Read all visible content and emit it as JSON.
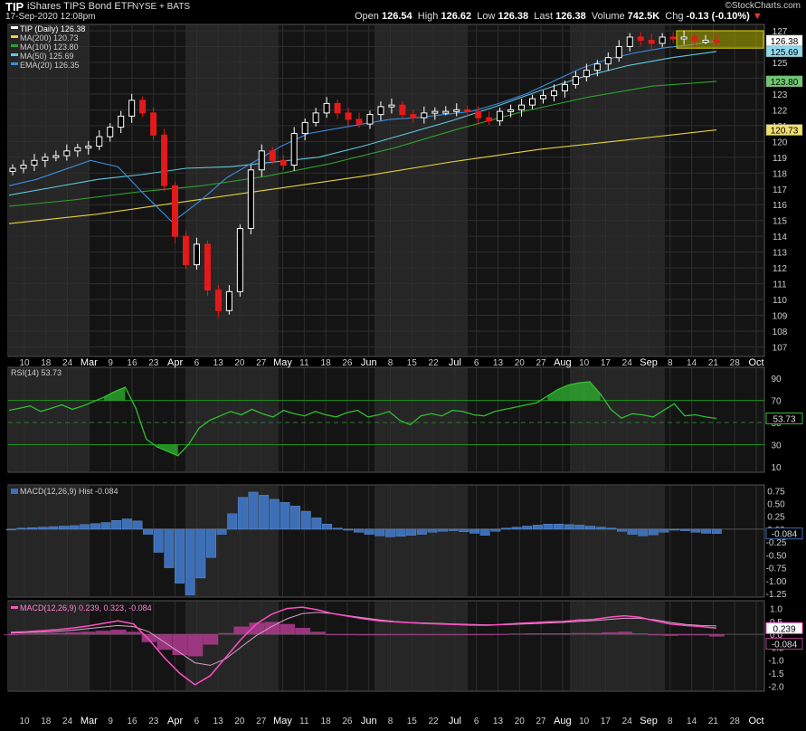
{
  "header": {
    "symbol": "TIP",
    "name": "iShares TIPS Bond ETF",
    "exchange": "NYSE + BATS",
    "datetime": "17-Sep-2020 12:08pm",
    "open_label": "Open",
    "open": "126.54",
    "high_label": "High",
    "high": "126.62",
    "low_label": "Low",
    "low": "126.38",
    "last_label": "Last",
    "last": "126.38",
    "volume_label": "Volume",
    "volume": "742.5K",
    "chg_label": "Chg",
    "chg": "-0.13 (-0.10%)",
    "chg_icon": "down-triangle-icon",
    "brand": "©StockCharts.com"
  },
  "colors": {
    "up": "#ffffff",
    "down": "#e31a1a",
    "ma200": "#e6d23a",
    "ma100": "#2ea02e",
    "ma50": "#5fc8e0",
    "ema20": "#3a8de0",
    "rsi": "#2fbf2f",
    "macd_hist": "#3d6fb8",
    "macd_line": "#ff4fc2",
    "signal": "#d7a0c8",
    "highlight": "#b3b000"
  },
  "chart_data": [
    {
      "type": "line",
      "title": "TIP (Daily) 126.38",
      "legend": [
        "TIP (Daily) 126.38",
        "MA(200) 120.73",
        "MA(100) 123.80",
        "MA(50) 125.69",
        "EMA(20) 126.35"
      ],
      "legend_placement": "top-left",
      "x_tick_labels": [
        "10",
        "18",
        "24",
        "Mar",
        "9",
        "16",
        "23",
        "Apr",
        "6",
        "13",
        "20",
        "27",
        "May",
        "11",
        "18",
        "26",
        "Jun",
        "8",
        "15",
        "22",
        "Jul",
        "6",
        "13",
        "20",
        "27",
        "Aug",
        "10",
        "17",
        "24",
        "Sep",
        "8",
        "14",
        "21",
        "28",
        "Oct"
      ],
      "y_ticks": [
        107,
        108,
        109,
        110,
        111,
        112,
        113,
        114,
        115,
        116,
        117,
        118,
        119,
        120,
        121,
        122,
        123,
        124,
        125,
        126,
        127
      ],
      "ylim": [
        106.4,
        127.4
      ],
      "right_labels": [
        "126.38",
        "125.69",
        "123.80",
        "120.73"
      ],
      "series": [
        {
          "name": "TIP (Daily)",
          "values": [
            118.3,
            118.5,
            118.8,
            119.0,
            119.1,
            119.4,
            119.6,
            119.7,
            120.3,
            120.9,
            121.6,
            122.6,
            121.8,
            120.4,
            117.2,
            114.0,
            112.2,
            113.5,
            110.6,
            109.3,
            110.5,
            114.5,
            118.2,
            119.4,
            118.8,
            118.5,
            120.5,
            121.2,
            121.8,
            122.4,
            121.8,
            121.4,
            121.1,
            121.7,
            122.2,
            122.3,
            121.7,
            121.5,
            121.8,
            121.9,
            121.9,
            122.0,
            121.9,
            121.5,
            121.3,
            121.9,
            122.0,
            122.3,
            122.7,
            122.9,
            123.2,
            123.6,
            124.1,
            124.5,
            124.9,
            125.3,
            126.0,
            126.6,
            126.4,
            126.2,
            126.6,
            126.5,
            126.6,
            126.4,
            126.4,
            126.38
          ]
        },
        {
          "name": "MA(200)",
          "values": [
            114.8,
            115.4,
            116.2,
            117.0,
            117.8,
            118.7,
            119.5,
            120.1,
            120.73
          ]
        },
        {
          "name": "MA(100)",
          "values": [
            115.9,
            116.3,
            116.8,
            117.2,
            117.8,
            118.6,
            119.6,
            120.8,
            121.9,
            122.8,
            123.5,
            123.8
          ]
        },
        {
          "name": "MA(50)",
          "values": [
            116.6,
            117.1,
            117.6,
            117.9,
            118.3,
            118.4,
            118.7,
            119.0,
            119.7,
            120.5,
            121.3,
            122.2,
            123.2,
            124.1,
            124.8,
            125.3,
            125.69
          ]
        },
        {
          "name": "EMA(20)",
          "values": [
            117.2,
            117.6,
            118.2,
            118.8,
            118.4,
            116.6,
            114.9,
            116.2,
            117.7,
            118.7,
            119.7,
            120.5,
            120.8,
            121.1,
            121.4,
            121.5,
            121.7,
            121.9,
            122.4,
            123.0,
            123.8,
            124.6,
            125.2,
            125.6,
            125.9,
            126.1,
            126.35
          ]
        }
      ]
    },
    {
      "type": "line",
      "title": "RSI(14) 53.73",
      "y_ticks": [
        10,
        30,
        50,
        70,
        90
      ],
      "ylim": [
        5,
        100
      ],
      "reference_lines": [
        30,
        50,
        70
      ],
      "right_labels": [
        "53.73"
      ],
      "series": [
        {
          "name": "RSI(14)",
          "values": [
            61,
            63,
            65,
            60,
            63,
            66,
            62,
            65,
            69,
            73,
            78,
            82,
            63,
            35,
            28,
            24,
            20,
            30,
            45,
            52,
            56,
            60,
            57,
            62,
            58,
            55,
            61,
            58,
            56,
            60,
            57,
            55,
            59,
            61,
            55,
            57,
            60,
            52,
            48,
            56,
            58,
            56,
            61,
            60,
            57,
            56,
            60,
            62,
            64,
            66,
            68,
            74,
            80,
            84,
            86,
            87,
            76,
            62,
            54,
            58,
            57,
            55,
            61,
            67,
            56,
            57,
            55,
            53.73
          ]
        }
      ]
    },
    {
      "type": "bar",
      "title": "MACD(12,26,9) Hist -0.084",
      "y_ticks": [
        0.75,
        0.5,
        0.25,
        0.0,
        -0.25,
        -0.5,
        -0.75,
        -1.0,
        -1.25
      ],
      "ylim": [
        -1.32,
        0.86
      ],
      "right_labels": [
        "-0.084"
      ],
      "series": [
        {
          "name": "Hist",
          "values": [
            0.0,
            0.02,
            0.03,
            0.04,
            0.05,
            0.06,
            0.07,
            0.09,
            0.11,
            0.13,
            0.17,
            0.2,
            0.16,
            -0.1,
            -0.45,
            -0.75,
            -1.05,
            -1.28,
            -0.95,
            -0.55,
            -0.1,
            0.3,
            0.62,
            0.72,
            0.66,
            0.58,
            0.52,
            0.45,
            0.35,
            0.22,
            0.1,
            0.02,
            -0.02,
            -0.06,
            -0.1,
            -0.13,
            -0.15,
            -0.14,
            -0.12,
            -0.1,
            -0.06,
            -0.04,
            -0.03,
            -0.05,
            -0.08,
            -0.12,
            -0.04,
            0.02,
            0.04,
            0.06,
            0.08,
            0.1,
            0.1,
            0.09,
            0.08,
            0.06,
            0.04,
            0.02,
            -0.04,
            -0.1,
            -0.13,
            -0.11,
            -0.06,
            -0.02,
            -0.03,
            -0.06,
            -0.08,
            -0.084
          ]
        }
      ]
    },
    {
      "type": "line",
      "title": "MACD(12,26,9) 0.239, 0.323, -0.084",
      "y_ticks": [
        1.0,
        0.5,
        0.0,
        -0.5,
        -1.0,
        -1.5,
        -2.0
      ],
      "ylim": [
        -2.2,
        1.3
      ],
      "right_labels": [
        "0.239",
        "-0.084"
      ],
      "series": [
        {
          "name": "MACD",
          "values": [
            0.08,
            0.1,
            0.14,
            0.18,
            0.24,
            0.32,
            0.42,
            0.52,
            0.4,
            -0.2,
            -0.9,
            -1.5,
            -1.95,
            -1.6,
            -0.9,
            -0.2,
            0.4,
            0.78,
            1.0,
            1.05,
            0.95,
            0.8,
            0.7,
            0.6,
            0.52,
            0.48,
            0.45,
            0.42,
            0.4,
            0.38,
            0.36,
            0.35,
            0.38,
            0.42,
            0.45,
            0.48,
            0.5,
            0.55,
            0.58,
            0.66,
            0.72,
            0.66,
            0.52,
            0.4,
            0.34,
            0.3,
            0.239
          ]
        },
        {
          "name": "Signal",
          "values": [
            0.05,
            0.07,
            0.09,
            0.12,
            0.16,
            0.22,
            0.28,
            0.34,
            0.3,
            0.1,
            -0.3,
            -0.7,
            -1.1,
            -1.2,
            -0.95,
            -0.5,
            -0.05,
            0.3,
            0.6,
            0.8,
            0.85,
            0.8,
            0.72,
            0.64,
            0.56,
            0.5,
            0.46,
            0.44,
            0.42,
            0.4,
            0.38,
            0.37,
            0.37,
            0.39,
            0.41,
            0.44,
            0.46,
            0.5,
            0.53,
            0.58,
            0.62,
            0.62,
            0.56,
            0.46,
            0.38,
            0.34,
            0.323
          ]
        },
        {
          "name": "Hist",
          "values": [
            0.0,
            0.03,
            0.05,
            0.06,
            0.08,
            0.1,
            0.14,
            0.18,
            0.1,
            -0.3,
            -0.6,
            -0.8,
            -0.85,
            -0.4,
            0.05,
            0.3,
            0.45,
            0.48,
            0.4,
            0.25,
            0.1,
            0.0,
            -0.02,
            -0.04,
            -0.04,
            -0.02,
            -0.01,
            -0.02,
            -0.02,
            -0.02,
            -0.02,
            -0.02,
            0.01,
            0.03,
            0.04,
            0.04,
            0.04,
            0.05,
            0.05,
            0.08,
            0.1,
            0.04,
            -0.04,
            -0.06,
            -0.04,
            -0.04,
            -0.084
          ]
        }
      ]
    }
  ]
}
